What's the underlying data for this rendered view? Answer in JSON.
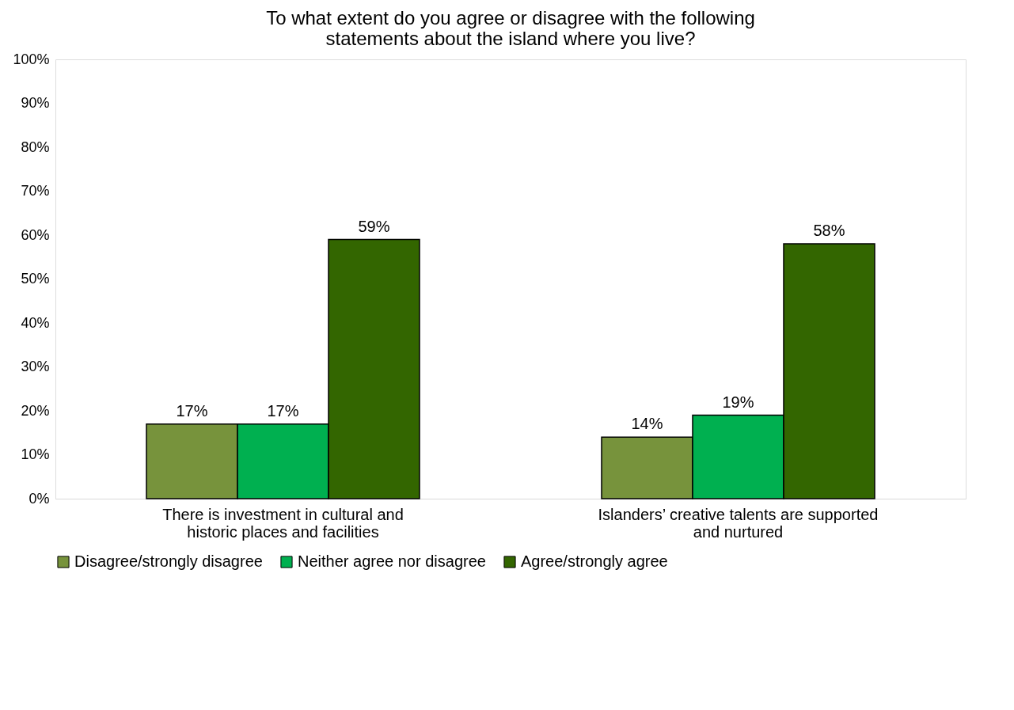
{
  "chart_data": {
    "type": "bar",
    "title": "To what extent do you agree or disagree with the following statements about the island where you live?",
    "categories": [
      "There is investment in cultural and historic places and facilities",
      "Islanders’ creative talents are supported and nurtured"
    ],
    "series": [
      {
        "name": "Disagree/strongly disagree",
        "color": "#77933c",
        "values": [
          17,
          14
        ],
        "value_labels": [
          "17%",
          "14%"
        ]
      },
      {
        "name": "Neither agree nor disagree",
        "color": "#00b050",
        "values": [
          17,
          19
        ],
        "value_labels": [
          "17%",
          "19%"
        ]
      },
      {
        "name": "Agree/strongly agree",
        "color": "#336600",
        "values": [
          59,
          58
        ],
        "value_labels": [
          "59%",
          "58%"
        ]
      }
    ],
    "ylim": [
      0,
      100
    ],
    "yticks": [
      {
        "value": 0,
        "label": "0%"
      },
      {
        "value": 10,
        "label": "10%"
      },
      {
        "value": 20,
        "label": "20%"
      },
      {
        "value": 30,
        "label": "30%"
      },
      {
        "value": 40,
        "label": "40%"
      },
      {
        "value": 50,
        "label": "50%"
      },
      {
        "value": 60,
        "label": "60%"
      },
      {
        "value": 70,
        "label": "70%"
      },
      {
        "value": 80,
        "label": "80%"
      },
      {
        "value": 90,
        "label": "90%"
      },
      {
        "value": 100,
        "label": "100%"
      }
    ],
    "grid": false,
    "legend": "bottom"
  }
}
